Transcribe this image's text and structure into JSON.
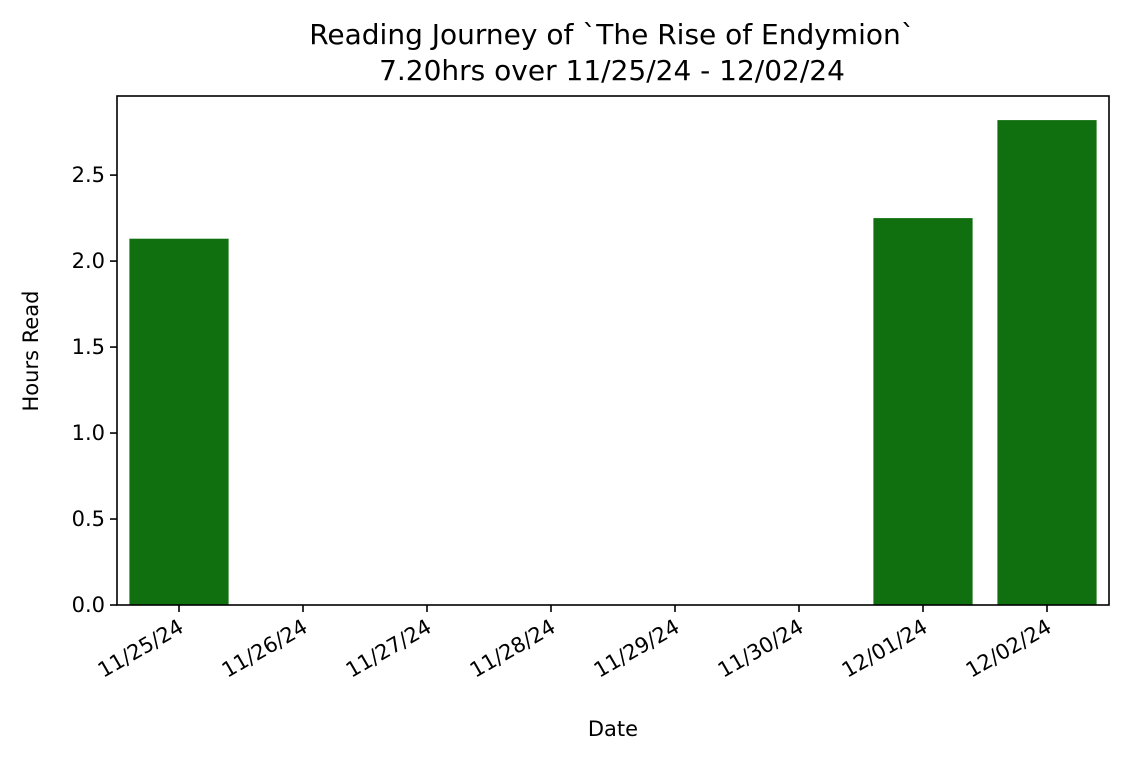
{
  "chart_data": {
    "type": "bar",
    "title_lines": [
      "Reading Journey of `The Rise of Endymion`",
      "7.20hrs over 11/25/24 - 12/02/24"
    ],
    "xlabel": "Date",
    "ylabel": "Hours Read",
    "categories": [
      "11/25/24",
      "11/26/24",
      "11/27/24",
      "11/28/24",
      "11/29/24",
      "11/30/24",
      "12/01/24",
      "12/02/24"
    ],
    "values": [
      2.13,
      0,
      0,
      0,
      0,
      0,
      2.25,
      2.82
    ],
    "y_ticks": [
      "0.0",
      "0.5",
      "1.0",
      "1.5",
      "2.0",
      "2.5"
    ],
    "ylim": [
      0,
      2.96
    ],
    "bar_color": "#107010",
    "grid": false
  }
}
